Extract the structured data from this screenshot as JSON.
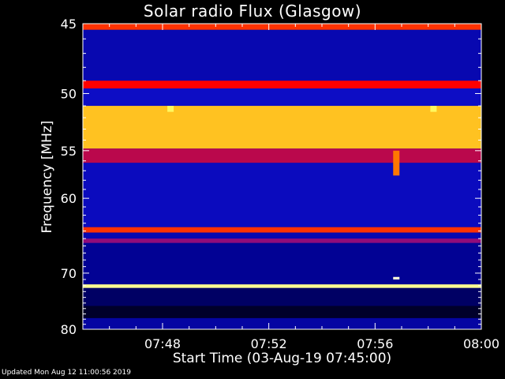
{
  "chart_data": {
    "type": "heatmap",
    "title": "Solar radio Flux (Glasgow)",
    "xlabel": "Start Time (03-Aug-19 07:45:00)",
    "ylabel": "Frequency [MHz]",
    "x_ticks": [
      "07:48",
      "07:52",
      "07:56",
      "08:00"
    ],
    "x_range_minutes": [
      0,
      15
    ],
    "y_ticks": [
      45,
      50,
      55,
      60,
      70,
      80
    ],
    "y_range_mhz": [
      45,
      80
    ],
    "colormap": [
      "#000000",
      "#00008b",
      "#1a1aff",
      "#ff0000",
      "#ffa500",
      "#ffff66",
      "#ffffff"
    ],
    "bands": [
      {
        "f1": 45.0,
        "f2": 45.4,
        "level": 0.55
      },
      {
        "f1": 45.4,
        "f2": 49.0,
        "level": 0.22
      },
      {
        "f1": 49.0,
        "f2": 49.6,
        "level": 0.5
      },
      {
        "f1": 49.6,
        "f2": 51.0,
        "level": 0.25
      },
      {
        "f1": 51.0,
        "f2": 54.8,
        "level": 0.72
      },
      {
        "f1": 54.8,
        "f2": 56.2,
        "level": 0.45
      },
      {
        "f1": 56.2,
        "f2": 63.5,
        "level": 0.24
      },
      {
        "f1": 63.5,
        "f2": 64.2,
        "level": 0.55
      },
      {
        "f1": 64.2,
        "f2": 65.0,
        "level": 0.22
      },
      {
        "f1": 65.0,
        "f2": 65.6,
        "level": 0.42
      },
      {
        "f1": 65.6,
        "f2": 71.8,
        "level": 0.18
      },
      {
        "f1": 71.8,
        "f2": 72.4,
        "level": 0.88
      },
      {
        "f1": 72.4,
        "f2": 75.5,
        "level": 0.12
      },
      {
        "f1": 75.5,
        "f2": 77.8,
        "level": 0.05
      },
      {
        "f1": 77.8,
        "f2": 80.0,
        "level": 0.2
      }
    ],
    "features": [
      {
        "t": 11.8,
        "f1": 55.0,
        "f2": 57.5,
        "level": 0.62
      },
      {
        "t": 11.8,
        "f1": 70.6,
        "f2": 71.0,
        "level": 0.96
      },
      {
        "t": 3.3,
        "f1": 51.0,
        "f2": 51.5,
        "level": 0.82
      },
      {
        "t": 13.2,
        "f1": 51.0,
        "f2": 51.5,
        "level": 0.82
      }
    ]
  },
  "footer": "Updated Mon Aug 12 11:00:56 2019"
}
